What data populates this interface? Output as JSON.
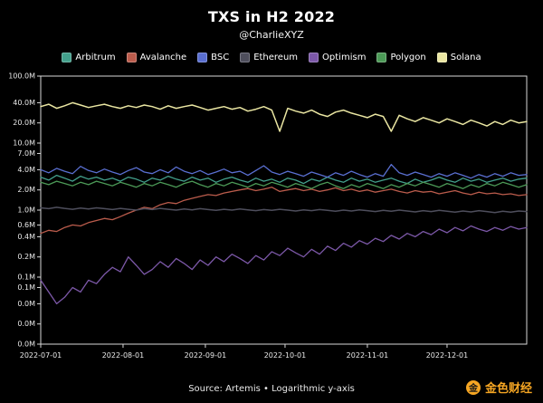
{
  "header": {
    "title": "TXS in H2 2022",
    "subtitle": "@CharlieXYZ"
  },
  "footer": {
    "source": "Source: Artemis • Logarithmic y-axis"
  },
  "watermark": {
    "text": "金色财经",
    "icon_char": "金",
    "color": "#f6a623"
  },
  "chart_data": {
    "type": "line",
    "title": "TXS in H2 2022",
    "subtitle": "@CharlieXYZ",
    "y_axis": {
      "scale": "log",
      "min": 0.01,
      "max": 100,
      "unit": "M transactions"
    },
    "y_ticks": {
      "values": [
        100,
        40,
        20,
        10,
        7,
        4,
        2,
        1,
        0.6,
        0.4,
        0.2,
        0.1,
        0.07,
        0.04,
        0.02,
        0.01
      ],
      "labels": [
        "100.0M",
        "40.0M",
        "20.0M",
        "10.0M",
        "7.0M",
        "4.0M",
        "2.0M",
        "1.0M",
        "0.6M",
        "0.4M",
        "0.2M",
        "0.1M",
        "0.1M",
        "0.0M",
        "0.0M",
        "0.0M"
      ]
    },
    "x_ticks": {
      "labels": [
        "2022-07-01",
        "2022-08-01",
        "2022-09-01",
        "2022-10-01",
        "2022-11-01",
        "2022-12-01"
      ],
      "day_offsets": [
        0,
        31,
        62,
        92,
        123,
        153
      ],
      "total_days": 183
    },
    "frame_color": "#d8d8d8",
    "grid": false,
    "legend_position": "top",
    "series": [
      {
        "name": "Arbitrum",
        "color": "#43a08c",
        "values": [
          3.1,
          2.8,
          3.3,
          3.0,
          2.7,
          3.2,
          2.9,
          3.1,
          2.8,
          3.0,
          2.7,
          3.1,
          2.9,
          2.6,
          3.0,
          2.8,
          3.2,
          2.9,
          2.7,
          3.1,
          2.8,
          3.0,
          2.6,
          2.9,
          3.1,
          2.8,
          2.6,
          3.0,
          2.7,
          2.9,
          2.6,
          3.0,
          2.8,
          2.5,
          2.9,
          2.7,
          3.1,
          2.8,
          2.6,
          3.0,
          2.7,
          2.9,
          2.6,
          2.8,
          3.0,
          2.7,
          2.5,
          2.9,
          2.6,
          2.8,
          3.1,
          2.8,
          2.6,
          3.0,
          2.7,
          2.9,
          2.6,
          2.8,
          3.0,
          2.7,
          2.9,
          3.0
        ]
      },
      {
        "name": "Avalanche",
        "color": "#bb5c4c",
        "values": [
          0.45,
          0.5,
          0.48,
          0.55,
          0.6,
          0.58,
          0.65,
          0.7,
          0.75,
          0.72,
          0.8,
          0.9,
          1.0,
          1.1,
          1.05,
          1.2,
          1.3,
          1.25,
          1.4,
          1.5,
          1.6,
          1.7,
          1.65,
          1.8,
          1.9,
          2.0,
          2.1,
          1.95,
          2.05,
          2.2,
          1.9,
          2.0,
          2.1,
          1.95,
          2.05,
          1.9,
          2.0,
          2.15,
          1.95,
          2.05,
          1.9,
          2.0,
          1.85,
          1.95,
          2.05,
          1.9,
          1.8,
          1.95,
          1.85,
          1.9,
          1.75,
          1.85,
          1.95,
          1.8,
          1.7,
          1.85,
          1.75,
          1.8,
          1.7,
          1.75,
          1.65,
          1.7
        ]
      },
      {
        "name": "BSC",
        "color": "#5a6fd1",
        "values": [
          4.0,
          3.6,
          4.2,
          3.8,
          3.5,
          4.5,
          3.9,
          3.6,
          4.1,
          3.7,
          3.4,
          3.9,
          4.3,
          3.7,
          3.5,
          4.0,
          3.6,
          4.4,
          3.8,
          3.5,
          3.9,
          3.4,
          3.7,
          4.1,
          3.6,
          3.8,
          3.3,
          3.9,
          4.6,
          3.7,
          3.4,
          3.8,
          3.5,
          3.2,
          3.7,
          3.4,
          3.1,
          3.6,
          3.3,
          3.8,
          3.4,
          3.1,
          3.5,
          3.2,
          4.8,
          3.6,
          3.3,
          3.7,
          3.4,
          3.1,
          3.5,
          3.2,
          3.6,
          3.3,
          3.0,
          3.4,
          3.1,
          3.5,
          3.2,
          3.6,
          3.3,
          3.4
        ]
      },
      {
        "name": "Ethereum",
        "color": "#4e4e5c",
        "values": [
          1.08,
          1.05,
          1.1,
          1.06,
          1.03,
          1.07,
          1.04,
          1.08,
          1.05,
          1.02,
          1.06,
          1.03,
          1.0,
          1.05,
          1.02,
          1.06,
          1.03,
          1.0,
          1.04,
          1.01,
          1.05,
          1.02,
          0.99,
          1.03,
          1.0,
          1.04,
          1.01,
          0.98,
          1.02,
          0.99,
          1.03,
          1.0,
          0.97,
          1.01,
          0.98,
          1.02,
          0.99,
          0.96,
          1.0,
          0.97,
          1.01,
          0.98,
          0.95,
          0.99,
          0.96,
          1.0,
          0.97,
          0.94,
          0.98,
          0.95,
          0.99,
          0.96,
          0.93,
          0.97,
          0.94,
          0.98,
          0.95,
          0.92,
          0.96,
          0.93,
          0.97,
          0.95
        ]
      },
      {
        "name": "Optimism",
        "color": "#7c58a8",
        "values": [
          0.09,
          0.06,
          0.04,
          0.05,
          0.07,
          0.06,
          0.09,
          0.08,
          0.11,
          0.14,
          0.12,
          0.2,
          0.15,
          0.11,
          0.13,
          0.17,
          0.14,
          0.19,
          0.16,
          0.13,
          0.18,
          0.15,
          0.2,
          0.17,
          0.22,
          0.19,
          0.16,
          0.21,
          0.18,
          0.24,
          0.21,
          0.27,
          0.23,
          0.2,
          0.26,
          0.22,
          0.29,
          0.25,
          0.32,
          0.28,
          0.35,
          0.31,
          0.38,
          0.34,
          0.42,
          0.37,
          0.45,
          0.4,
          0.48,
          0.43,
          0.52,
          0.46,
          0.55,
          0.49,
          0.58,
          0.52,
          0.48,
          0.55,
          0.5,
          0.57,
          0.52,
          0.55
        ]
      },
      {
        "name": "Polygon",
        "color": "#4c9a57",
        "values": [
          2.6,
          2.4,
          2.7,
          2.5,
          2.3,
          2.6,
          2.4,
          2.7,
          2.5,
          2.3,
          2.6,
          2.4,
          2.2,
          2.5,
          2.3,
          2.6,
          2.4,
          2.2,
          2.5,
          2.7,
          2.4,
          2.2,
          2.5,
          2.3,
          2.6,
          2.4,
          2.2,
          2.5,
          2.3,
          2.6,
          2.4,
          2.2,
          2.5,
          2.3,
          2.1,
          2.4,
          2.6,
          2.3,
          2.1,
          2.4,
          2.2,
          2.5,
          2.3,
          2.1,
          2.4,
          2.2,
          2.5,
          2.3,
          2.6,
          2.4,
          2.2,
          2.5,
          2.3,
          2.1,
          2.4,
          2.2,
          2.5,
          2.3,
          2.6,
          2.4,
          2.2,
          2.4
        ]
      },
      {
        "name": "Solana",
        "color": "#eae6a2",
        "values": [
          35,
          38,
          33,
          36,
          40,
          37,
          34,
          36,
          38,
          35,
          33,
          36,
          34,
          37,
          35,
          32,
          36,
          33,
          35,
          37,
          34,
          31,
          33,
          35,
          32,
          34,
          30,
          32,
          35,
          31,
          15,
          33,
          30,
          28,
          31,
          27,
          25,
          29,
          31,
          28,
          26,
          24,
          27,
          25,
          15,
          26,
          23,
          21,
          24,
          22,
          20,
          23,
          21,
          19,
          22,
          20,
          18,
          21,
          19,
          22,
          20,
          21
        ]
      }
    ]
  }
}
